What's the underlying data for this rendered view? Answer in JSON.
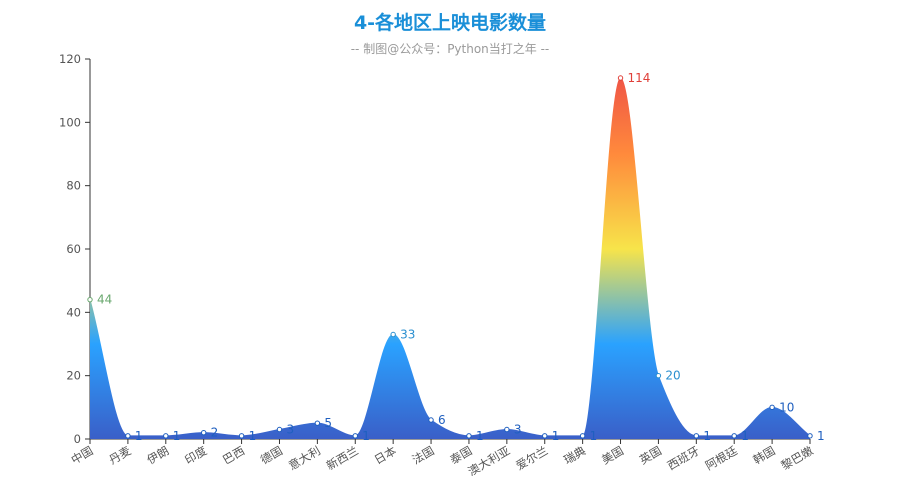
{
  "chart_data": {
    "type": "area",
    "title": "4-各地区上映电影数量",
    "subtitle": "-- 制图@公众号：Python当打之年 --",
    "categories": [
      "中国",
      "丹麦",
      "伊朗",
      "印度",
      "巴西",
      "德国",
      "意大利",
      "新西兰",
      "日本",
      "法国",
      "泰国",
      "澳大利亚",
      "爱尔兰",
      "瑞典",
      "美国",
      "英国",
      "西班牙",
      "阿根廷",
      "韩国",
      "黎巴嫩"
    ],
    "values": [
      44,
      1,
      1,
      2,
      1,
      3,
      5,
      1,
      33,
      6,
      1,
      3,
      1,
      1,
      114,
      20,
      1,
      1,
      10,
      1
    ],
    "ylim": [
      0,
      120
    ],
    "yticks": [
      0,
      20,
      40,
      60,
      80,
      100,
      120
    ],
    "xlabel": "",
    "ylabel": "",
    "smooth": true,
    "gradient_colors": [
      "#3a5fc8",
      "#2aa2ff",
      "#f7e44a",
      "#ff8a3c",
      "#ec4848"
    ],
    "label_colors": {
      "low": "#1f5fbf",
      "mid": "#2a8fd0",
      "high": "#e0403a",
      "first": "#6aa86f"
    }
  }
}
